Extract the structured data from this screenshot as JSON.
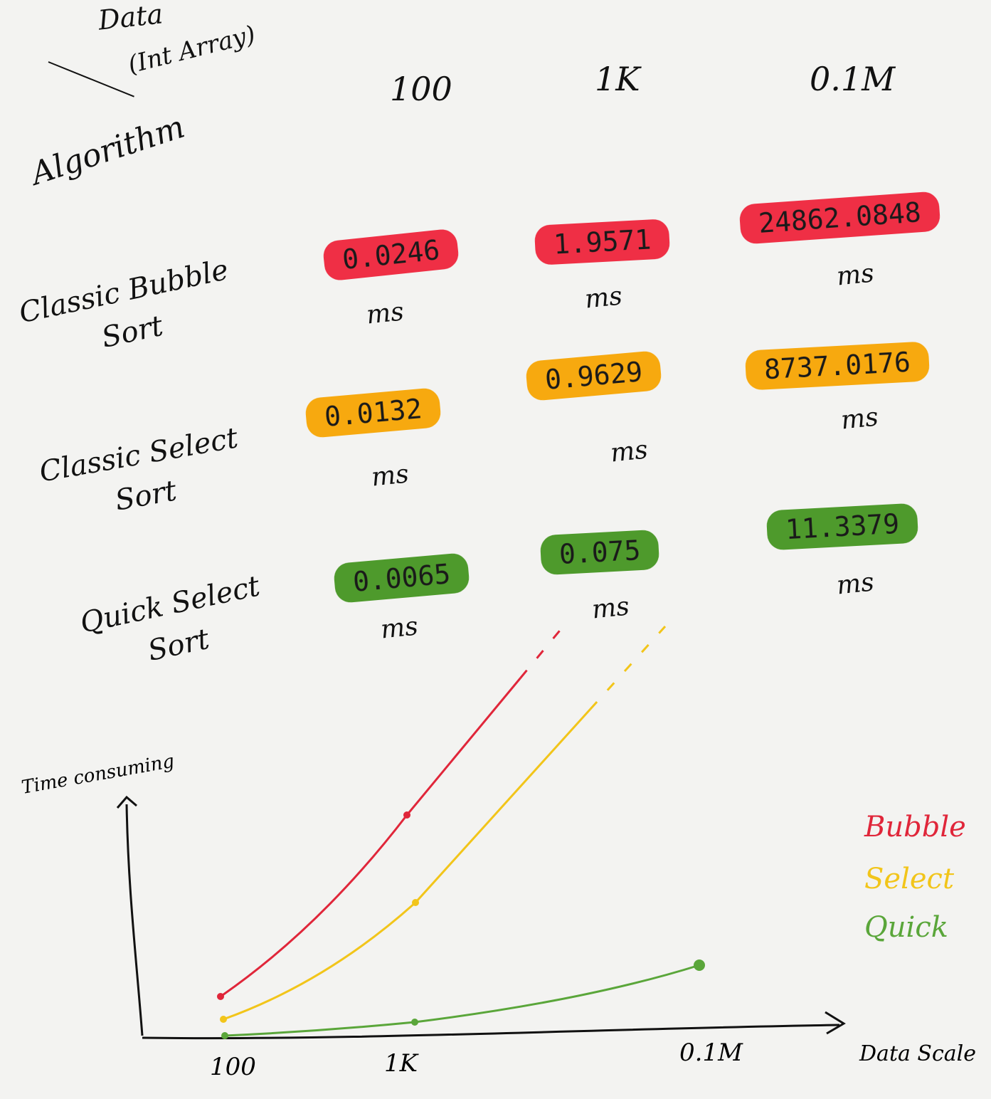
{
  "header": {
    "data_label": "Data",
    "data_sub": "(Int Array)",
    "algorithm_label": "Algorithm",
    "columns": [
      "100",
      "1K",
      "0.1M"
    ]
  },
  "rows": [
    {
      "label": "Classic Bubble Sort",
      "values": [
        "0.0246",
        "1.9571",
        "24862.0848"
      ],
      "unit": "ms"
    },
    {
      "label": "Classic Select Sort",
      "values": [
        "0.0132",
        "0.9629",
        "8737.0176"
      ],
      "unit": "ms"
    },
    {
      "label": "Quick Select Sort",
      "values": [
        "0.0065",
        "0.075",
        "11.3379"
      ],
      "unit": "ms"
    }
  ],
  "colors": {
    "bubble": "#ef2f45",
    "select": "#f7a90f",
    "quick": "#4e9a2c",
    "bubble_line": "#e0263a",
    "select_line": "#f2c51a",
    "quick_line": "#5aa63a"
  },
  "chart_data": {
    "type": "line",
    "ylabel": "Time consuming",
    "xlabel": "Data Scale",
    "categories": [
      "100",
      "1K",
      "0.1M"
    ],
    "series": [
      {
        "name": "Bubble",
        "values": [
          0.0246,
          1.9571,
          24862.0848
        ],
        "dashed_after": true
      },
      {
        "name": "Select",
        "values": [
          0.0132,
          0.9629,
          8737.0176
        ],
        "dashed_after": true
      },
      {
        "name": "Quick",
        "values": [
          0.0065,
          0.075,
          11.3379
        ]
      }
    ],
    "legend_position": "right",
    "grid": false
  }
}
